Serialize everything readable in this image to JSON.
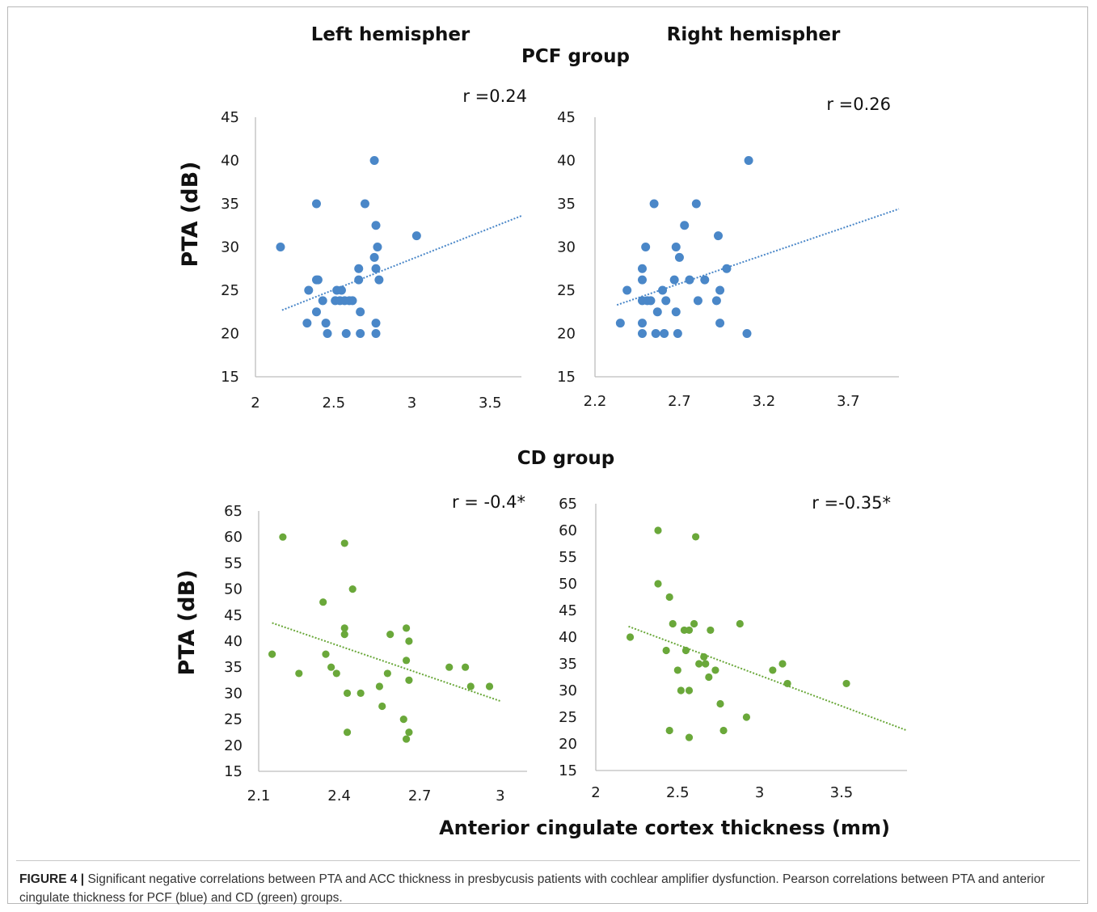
{
  "figure": {
    "caption_label": "FIGURE 4 |",
    "caption_text": "Significant negative correlations between PTA and ACC thickness in presbycusis patients with cochlear amplifier dysfunction. Pearson correlations between PTA and anterior cingulate thickness for PCF (blue) and CD (green) groups."
  },
  "headings": {
    "left": "Left hemispher",
    "right": "Right hemispher",
    "group_top": "PCF group",
    "group_bottom": "CD group",
    "y_top": "PTA (dB)",
    "y_bottom": "PTA (dB)",
    "x_bottom": "Anterior cingulate cortex thickness (mm)"
  },
  "colors": {
    "pcf": "#4a87c8",
    "cd": "#6aa83a",
    "axis": "#bdbdbd"
  },
  "chart_data": [
    {
      "type": "scatter",
      "group": "PCF group",
      "hemisphere": "Left hemispher",
      "annotation": "r =0.24",
      "ylabel": "PTA (dB)",
      "xlim": [
        2,
        3.7
      ],
      "ylim": [
        15,
        45
      ],
      "xticks": [
        "2",
        "2.5",
        "3",
        "3.5"
      ],
      "yticks": [
        "15",
        "20",
        "25",
        "30",
        "35",
        "40",
        "45"
      ],
      "trendline": [
        [
          2.17,
          22.7
        ],
        [
          3.7,
          33.6
        ]
      ],
      "color": "#4a87c8",
      "points": [
        [
          2.16,
          30
        ],
        [
          2.33,
          21.2
        ],
        [
          2.34,
          25
        ],
        [
          2.39,
          22.5
        ],
        [
          2.39,
          26.2
        ],
        [
          2.39,
          35
        ],
        [
          2.4,
          26.2
        ],
        [
          2.43,
          23.8
        ],
        [
          2.45,
          21.2
        ],
        [
          2.46,
          20
        ],
        [
          2.51,
          23.8
        ],
        [
          2.52,
          25
        ],
        [
          2.54,
          23.8
        ],
        [
          2.55,
          25
        ],
        [
          2.57,
          23.8
        ],
        [
          2.58,
          20
        ],
        [
          2.6,
          23.8
        ],
        [
          2.62,
          23.8
        ],
        [
          2.66,
          27.5
        ],
        [
          2.66,
          26.2
        ],
        [
          2.67,
          22.5
        ],
        [
          2.67,
          20
        ],
        [
          2.7,
          35
        ],
        [
          2.76,
          40
        ],
        [
          2.76,
          28.8
        ],
        [
          2.77,
          32.5
        ],
        [
          2.77,
          27.5
        ],
        [
          2.77,
          21.2
        ],
        [
          2.77,
          20
        ],
        [
          2.78,
          30
        ],
        [
          2.79,
          26.2
        ],
        [
          3.03,
          31.3
        ]
      ]
    },
    {
      "type": "scatter",
      "group": "PCF group",
      "hemisphere": "Right hemispher",
      "annotation": "r =0.26",
      "ylabel": "PTA (dB)",
      "xlim": [
        2.2,
        4.0
      ],
      "ylim": [
        15,
        45
      ],
      "xticks": [
        "2.2",
        "2.7",
        "3.2",
        "3.7"
      ],
      "yticks": [
        "15",
        "20",
        "25",
        "30",
        "35",
        "40",
        "45"
      ],
      "trendline": [
        [
          2.33,
          23.3
        ],
        [
          4.0,
          34.4
        ]
      ],
      "color": "#4a87c8",
      "points": [
        [
          2.35,
          21.2
        ],
        [
          2.39,
          25
        ],
        [
          2.48,
          23.8
        ],
        [
          2.48,
          20
        ],
        [
          2.48,
          21.2
        ],
        [
          2.48,
          26.2
        ],
        [
          2.48,
          27.5
        ],
        [
          2.5,
          30
        ],
        [
          2.51,
          23.8
        ],
        [
          2.53,
          23.8
        ],
        [
          2.55,
          35
        ],
        [
          2.56,
          20
        ],
        [
          2.57,
          22.5
        ],
        [
          2.6,
          25
        ],
        [
          2.61,
          20
        ],
        [
          2.62,
          23.8
        ],
        [
          2.67,
          26.2
        ],
        [
          2.68,
          30
        ],
        [
          2.68,
          22.5
        ],
        [
          2.69,
          20
        ],
        [
          2.7,
          28.8
        ],
        [
          2.73,
          32.5
        ],
        [
          2.76,
          26.2
        ],
        [
          2.8,
          35
        ],
        [
          2.81,
          23.8
        ],
        [
          2.85,
          26.2
        ],
        [
          2.92,
          23.8
        ],
        [
          2.93,
          31.3
        ],
        [
          2.94,
          25
        ],
        [
          2.94,
          21.2
        ],
        [
          2.98,
          27.5
        ],
        [
          3.1,
          20
        ],
        [
          3.11,
          40
        ]
      ]
    },
    {
      "type": "scatter",
      "group": "CD group",
      "hemisphere": "Left hemispher",
      "annotation": "r = -0.4*",
      "ylabel": "PTA (dB)",
      "xlim": [
        2.1,
        3.1
      ],
      "ylim": [
        15,
        65
      ],
      "xticks": [
        "2.1",
        "2.4",
        "2.7",
        "3"
      ],
      "yticks": [
        "15",
        "20",
        "25",
        "30",
        "35",
        "40",
        "45",
        "50",
        "55",
        "60",
        "65"
      ],
      "trendline": [
        [
          2.15,
          43.5
        ],
        [
          3.0,
          28.5
        ]
      ],
      "color": "#6aa83a",
      "points": [
        [
          2.15,
          37.5
        ],
        [
          2.19,
          60
        ],
        [
          2.25,
          33.8
        ],
        [
          2.34,
          47.5
        ],
        [
          2.35,
          37.5
        ],
        [
          2.37,
          35
        ],
        [
          2.39,
          33.8
        ],
        [
          2.42,
          41.3
        ],
        [
          2.42,
          42.5
        ],
        [
          2.42,
          58.8
        ],
        [
          2.43,
          30
        ],
        [
          2.43,
          22.5
        ],
        [
          2.45,
          50
        ],
        [
          2.48,
          30
        ],
        [
          2.55,
          31.3
        ],
        [
          2.56,
          27.5
        ],
        [
          2.58,
          33.8
        ],
        [
          2.59,
          41.3
        ],
        [
          2.64,
          25
        ],
        [
          2.65,
          21.2
        ],
        [
          2.65,
          42.5
        ],
        [
          2.65,
          36.3
        ],
        [
          2.66,
          22.5
        ],
        [
          2.66,
          40
        ],
        [
          2.66,
          32.5
        ],
        [
          2.81,
          35
        ],
        [
          2.87,
          35
        ],
        [
          2.89,
          31.3
        ],
        [
          2.96,
          31.3
        ]
      ]
    },
    {
      "type": "scatter",
      "group": "CD group",
      "hemisphere": "Right hemispher",
      "annotation": "r =-0.35*",
      "ylabel": "PTA (dB)",
      "xlabel": "Anterior cingulate cortex thickness (mm)",
      "xlim": [
        2,
        3.9
      ],
      "ylim": [
        15,
        65
      ],
      "xticks": [
        "2",
        "2.5",
        "3",
        "3.5"
      ],
      "yticks": [
        "15",
        "20",
        "25",
        "30",
        "35",
        "40",
        "45",
        "50",
        "55",
        "60",
        "65"
      ],
      "trendline": [
        [
          2.2,
          42
        ],
        [
          3.9,
          22.5
        ]
      ],
      "color": "#6aa83a",
      "points": [
        [
          2.21,
          40
        ],
        [
          2.38,
          60
        ],
        [
          2.38,
          50
        ],
        [
          2.43,
          37.5
        ],
        [
          2.45,
          47.5
        ],
        [
          2.45,
          22.5
        ],
        [
          2.47,
          42.5
        ],
        [
          2.5,
          33.8
        ],
        [
          2.52,
          30
        ],
        [
          2.54,
          41.3
        ],
        [
          2.55,
          37.5
        ],
        [
          2.57,
          41.3
        ],
        [
          2.57,
          30
        ],
        [
          2.57,
          21.2
        ],
        [
          2.6,
          42.5
        ],
        [
          2.61,
          58.8
        ],
        [
          2.63,
          35
        ],
        [
          2.66,
          36.3
        ],
        [
          2.67,
          35
        ],
        [
          2.69,
          32.5
        ],
        [
          2.7,
          41.3
        ],
        [
          2.73,
          33.8
        ],
        [
          2.76,
          27.5
        ],
        [
          2.78,
          22.5
        ],
        [
          2.88,
          42.5
        ],
        [
          2.92,
          25
        ],
        [
          3.08,
          33.8
        ],
        [
          3.14,
          35
        ],
        [
          3.17,
          31.3
        ],
        [
          3.53,
          31.3
        ]
      ]
    }
  ]
}
